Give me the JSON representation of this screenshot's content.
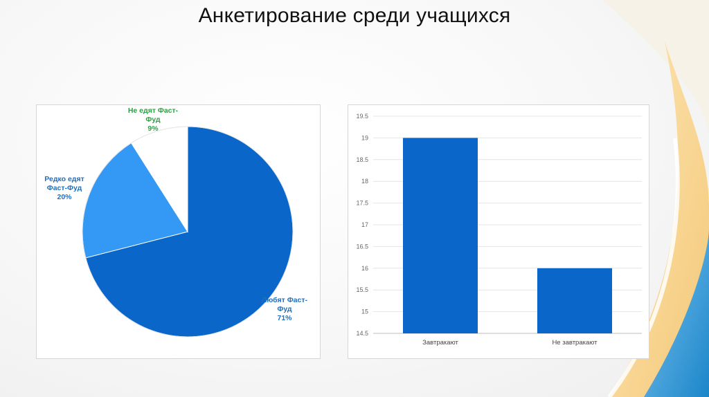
{
  "slide": {
    "title": "Анкетирование среди учащихся"
  },
  "colors": {
    "series_dark": "#0a66c8",
    "series_mid": "#3399f4",
    "slice_white": "#ffffff",
    "label_green": "#2e9e44",
    "label_blue": "#1f6fbf",
    "bar_color": "#0a66c8"
  },
  "chart_data": [
    {
      "type": "pie",
      "slices": [
        {
          "label_lines": [
            "Любят Фаст-",
            "Фуд",
            "71%"
          ],
          "value": 71
        },
        {
          "label_lines": [
            "Редко едят",
            "Фаст-Фуд",
            "20%"
          ],
          "value": 20
        },
        {
          "label_lines": [
            "Не едят Фаст-",
            "Фуд",
            "9%"
          ],
          "value": 9
        }
      ]
    },
    {
      "type": "bar",
      "categories": [
        "Завтракают",
        "Не завтракают"
      ],
      "values": [
        19,
        16
      ],
      "ylim": [
        14.5,
        19.5
      ],
      "yticks": [
        "14.5",
        "15",
        "15.5",
        "16",
        "16.5",
        "17",
        "17.5",
        "18",
        "18.5",
        "19",
        "19.5"
      ],
      "grid": true
    }
  ]
}
